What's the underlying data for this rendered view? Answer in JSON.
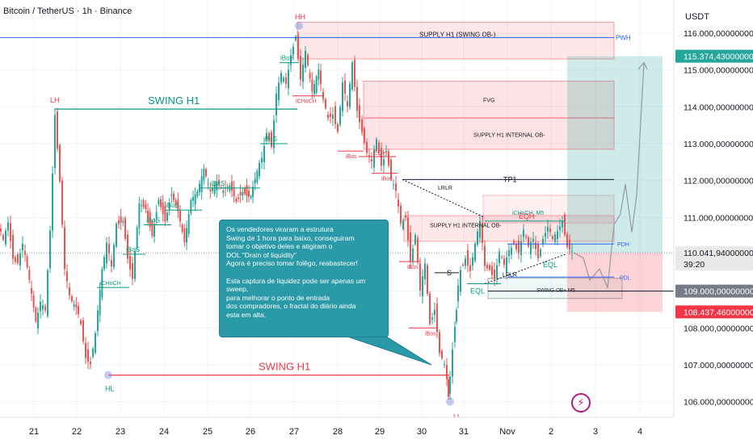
{
  "header": {
    "symbol_title": "Bitcoin / TetherUS · 1h · Binance",
    "currency": "USDT"
  },
  "price_axis": {
    "ticks": [
      {
        "value": 116000,
        "label": "116.000,00000000"
      },
      {
        "value": 115000,
        "label": "115.000,00000000"
      },
      {
        "value": 114000,
        "label": "114.000,00000000"
      },
      {
        "value": 113000,
        "label": "113.000,00000000"
      },
      {
        "value": 112000,
        "label": "112.000,00000000"
      },
      {
        "value": 111000,
        "label": "111.000,00000000"
      },
      {
        "value": 110000,
        "label": "110.000,00000000"
      },
      {
        "value": 109000,
        "label": "109.000,00000000"
      },
      {
        "value": 108000,
        "label": "108.000,00000000"
      },
      {
        "value": 107000,
        "label": "107.000,00000000"
      },
      {
        "value": 106000,
        "label": "106.000,00000000"
      }
    ],
    "badges": [
      {
        "value": 115374.43,
        "label": "115.374,43000000",
        "color": "#26a69a",
        "text_color": "#ffffff"
      },
      {
        "value": 110041.94,
        "label": "110.041,94000000",
        "sub": "39:20",
        "color": "#e9e9ea",
        "text_color": "#131722"
      },
      {
        "value": 109000,
        "label": "109.000,00000000",
        "color": "#787b86",
        "text_color": "#ffffff"
      },
      {
        "value": 108437.46,
        "label": "108.437,46000000",
        "color": "#f23645",
        "text_color": "#ffffff"
      }
    ]
  },
  "time_axis": {
    "labels": [
      "21",
      "22",
      "23",
      "24",
      "25",
      "26",
      "27",
      "28",
      "29",
      "30",
      "31",
      "Nov",
      "2",
      "3",
      "4"
    ]
  },
  "annotations": {
    "note": "Os vendedores viraram a estrutura\nSwing de 1 hora para baixo, conseguiram\ntomar o objetivo deles e atigiram o\nDOL \"Drain of liquidity\"\nAgora é preciso tomar folêgo, reabastecer!\n\nEsta captura de liquidez pode ser apenas um sweep,\npara melhorar o ponto de entrada\ndos compradores, o fractal do diário ainda\nesta em alta.",
    "swing_h1_top": "SWING H1",
    "swing_h1_bottom": "SWING H1",
    "zones": {
      "supply_swing": "SUPPLY H1 (SWING OB-)",
      "fvg": "FVG",
      "supply_internal": "SUPPLY H1 INTERNAL OB-",
      "supply_internal_2": "SUPPLY H1 INTERNAL OB-",
      "swing_ob_plus": "SWING OB+ M5",
      "ichoch_m5": "iCHoCH_M5"
    },
    "levels": {
      "pwh": "PWH",
      "tp1": "TP1",
      "pdh": "PDH",
      "pdl": "PDL"
    },
    "swing_points": {
      "hh": "HH",
      "lh": "LH",
      "hl": "HL",
      "ll": "LL"
    },
    "structure": {
      "ibos": "iBoS",
      "ichoch": "iCHoCH",
      "ibos_red": "iBos",
      "eqh": "EQH",
      "eql": "EQL",
      "lrlr": "LRLR",
      "s": "S"
    }
  },
  "chart_data": {
    "type": "candlestick",
    "title": "Bitcoin / TetherUS · 1h · Binance",
    "ylim": [
      105400,
      116900
    ],
    "x_categories": [
      "21",
      "22",
      "23",
      "24",
      "25",
      "26",
      "27",
      "28",
      "29",
      "30",
      "31",
      "Nov",
      "2",
      "3",
      "4"
    ],
    "grid": true,
    "colors": {
      "up": "#26a69a",
      "down": "#ef5350"
    },
    "key_levels": [
      {
        "name": "PWH",
        "value": 115880
      },
      {
        "name": "TP1",
        "value": 112030
      },
      {
        "name": "PDH",
        "value": 110280
      },
      {
        "name": "PDL",
        "value": 109380
      },
      {
        "name": "SWING H1",
        "value": 113940
      },
      {
        "name": "SWING H1",
        "value": 106720
      }
    ],
    "price_path": [
      [
        0,
        110700
      ],
      [
        6,
        110300
      ],
      [
        12,
        110900
      ],
      [
        18,
        110000
      ],
      [
        24,
        109800
      ],
      [
        30,
        110200
      ],
      [
        38,
        109200
      ],
      [
        46,
        108100
      ],
      [
        52,
        108600
      ],
      [
        58,
        108400
      ],
      [
        64,
        110700
      ],
      [
        70,
        113900
      ],
      [
        76,
        112000
      ],
      [
        82,
        109500
      ],
      [
        88,
        108800
      ],
      [
        96,
        108500
      ],
      [
        102,
        108100
      ],
      [
        108,
        107300
      ],
      [
        114,
        107100
      ],
      [
        120,
        107800
      ],
      [
        128,
        109500
      ],
      [
        134,
        110200
      ],
      [
        140,
        109600
      ],
      [
        146,
        110900
      ],
      [
        154,
        111000
      ],
      [
        160,
        110000
      ],
      [
        166,
        109400
      ],
      [
        174,
        111400
      ],
      [
        182,
        111300
      ],
      [
        190,
        110600
      ],
      [
        198,
        111600
      ],
      [
        206,
        111000
      ],
      [
        214,
        111700
      ],
      [
        222,
        111200
      ],
      [
        230,
        110300
      ],
      [
        238,
        111400
      ],
      [
        246,
        111600
      ],
      [
        254,
        112200
      ],
      [
        262,
        111600
      ],
      [
        270,
        111900
      ],
      [
        278,
        111700
      ],
      [
        286,
        111900
      ],
      [
        294,
        111500
      ],
      [
        302,
        111800
      ],
      [
        312,
        111600
      ],
      [
        320,
        112200
      ],
      [
        326,
        112600
      ],
      [
        332,
        113400
      ],
      [
        338,
        113000
      ],
      [
        344,
        114300
      ],
      [
        350,
        114800
      ],
      [
        356,
        114600
      ],
      [
        362,
        115500
      ],
      [
        368,
        116000
      ],
      [
        374,
        114700
      ],
      [
        380,
        115400
      ],
      [
        388,
        114300
      ],
      [
        396,
        114900
      ],
      [
        402,
        114100
      ],
      [
        408,
        113700
      ],
      [
        414,
        113900
      ],
      [
        420,
        113400
      ],
      [
        426,
        114600
      ],
      [
        432,
        113900
      ],
      [
        438,
        115200
      ],
      [
        444,
        114000
      ],
      [
        450,
        113400
      ],
      [
        456,
        112700
      ],
      [
        462,
        112400
      ],
      [
        468,
        113100
      ],
      [
        474,
        112500
      ],
      [
        480,
        112900
      ],
      [
        486,
        112000
      ],
      [
        492,
        111600
      ],
      [
        498,
        110800
      ],
      [
        504,
        111100
      ],
      [
        510,
        109900
      ],
      [
        516,
        110500
      ],
      [
        522,
        108900
      ],
      [
        528,
        109700
      ],
      [
        534,
        108200
      ],
      [
        540,
        108600
      ],
      [
        546,
        107300
      ],
      [
        552,
        106900
      ],
      [
        556,
        106100
      ],
      [
        562,
        107500
      ],
      [
        566,
        108600
      ],
      [
        572,
        109600
      ],
      [
        578,
        110000
      ],
      [
        584,
        109600
      ],
      [
        590,
        110200
      ],
      [
        596,
        110800
      ],
      [
        602,
        109700
      ],
      [
        608,
        109700
      ],
      [
        614,
        109400
      ],
      [
        620,
        110000
      ],
      [
        626,
        109600
      ],
      [
        632,
        110100
      ],
      [
        638,
        110400
      ],
      [
        644,
        110100
      ],
      [
        650,
        110600
      ],
      [
        656,
        110100
      ],
      [
        662,
        110400
      ],
      [
        668,
        110000
      ],
      [
        674,
        110500
      ],
      [
        680,
        110700
      ],
      [
        686,
        110300
      ],
      [
        692,
        110600
      ],
      [
        698,
        111000
      ],
      [
        704,
        110300
      ],
      [
        710,
        110040
      ]
    ],
    "projection": [
      [
        710,
        110040
      ],
      [
        722,
        109900
      ],
      [
        730,
        109300
      ],
      [
        742,
        109600
      ],
      [
        752,
        109100
      ],
      [
        760,
        110800
      ],
      [
        768,
        111100
      ],
      [
        774,
        111900
      ],
      [
        782,
        110600
      ],
      [
        788,
        111600
      ],
      [
        797,
        115200
      ]
    ]
  }
}
